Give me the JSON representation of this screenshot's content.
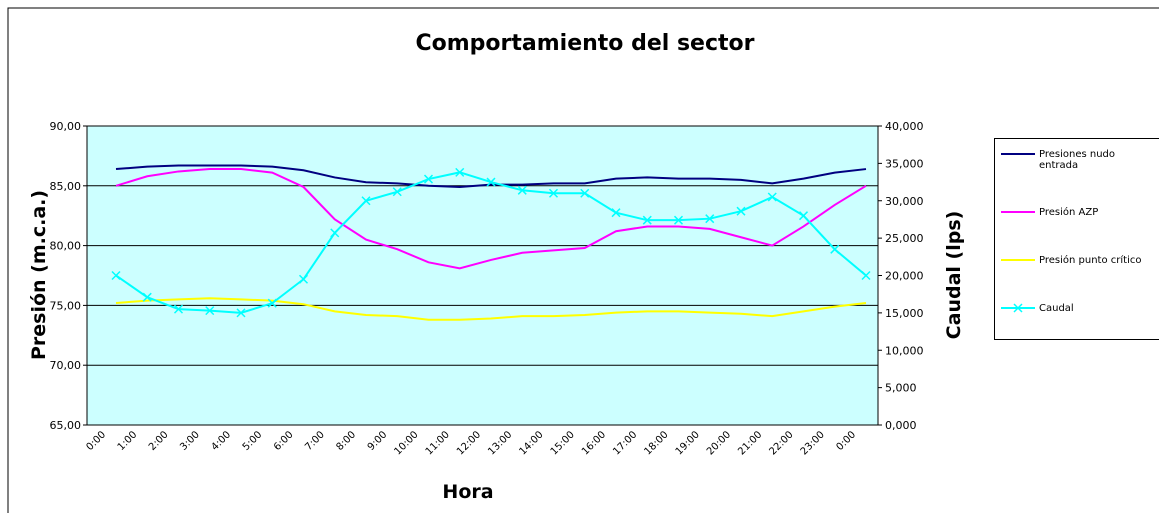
{
  "chart_data": {
    "type": "line",
    "title": "Comportamiento del sector",
    "xlabel": "Hora",
    "ylabel": "Presión (m.c.a.)",
    "y2label": "Caudal (lps)",
    "categories": [
      "0:00",
      "1:00",
      "2:00",
      "3:00",
      "4:00",
      "5:00",
      "6:00",
      "7:00",
      "8:00",
      "9:00",
      "10:00",
      "11:00",
      "12:00",
      "13:00",
      "14:00",
      "15:00",
      "16:00",
      "17:00",
      "18:00",
      "19:00",
      "20:00",
      "21:00",
      "22:00",
      "23:00",
      "0:00"
    ],
    "series": [
      {
        "name": "Presiones nudo entrada",
        "color": "#000080",
        "values": [
          86.4,
          86.6,
          86.7,
          86.7,
          86.7,
          86.6,
          86.3,
          85.7,
          85.3,
          85.2,
          85.0,
          84.9,
          85.1,
          85.1,
          85.2,
          85.2,
          85.6,
          85.7,
          85.6,
          85.6,
          85.5,
          85.2,
          85.6,
          86.1,
          86.4
        ]
      },
      {
        "name": "Presión AZP",
        "color": "#ff00ff",
        "values": [
          85.0,
          85.8,
          86.2,
          86.4,
          86.4,
          86.1,
          84.9,
          82.2,
          80.5,
          79.7,
          78.6,
          78.1,
          78.8,
          79.4,
          79.6,
          79.8,
          81.2,
          81.6,
          81.6,
          81.4,
          80.7,
          80.0,
          81.6,
          83.4,
          85.0
        ]
      },
      {
        "name": "Presión punto crítico",
        "color": "#ffff00",
        "values": [
          75.2,
          75.4,
          75.5,
          75.6,
          75.5,
          75.4,
          75.1,
          74.5,
          74.2,
          74.1,
          73.8,
          73.8,
          73.9,
          74.1,
          74.1,
          74.2,
          74.4,
          74.5,
          74.5,
          74.4,
          74.3,
          74.1,
          74.5,
          74.9,
          75.2
        ]
      },
      {
        "name": "Caudal",
        "color": "#00ffff",
        "axis": "y2",
        "marker": "x",
        "values": [
          20000,
          17100,
          15500,
          15300,
          15000,
          16300,
          19500,
          25700,
          30000,
          31200,
          32900,
          33800,
          32500,
          31400,
          31000,
          31000,
          28400,
          27400,
          27400,
          27600,
          28600,
          30500,
          28000,
          23500,
          20000
        ]
      }
    ],
    "ylim": [
      65,
      90
    ],
    "yticks": [
      {
        "value": 65,
        "label": "65,00"
      },
      {
        "value": 70,
        "label": "70,00"
      },
      {
        "value": 75,
        "label": "75,00"
      },
      {
        "value": 80,
        "label": "80,00"
      },
      {
        "value": 85,
        "label": "85,00"
      },
      {
        "value": 90,
        "label": "90,00"
      }
    ],
    "y2lim": [
      0,
      40000
    ],
    "y2ticks": [
      {
        "value": 0,
        "label": "0,000"
      },
      {
        "value": 5000,
        "label": "5,000"
      },
      {
        "value": 10000,
        "label": "10,000"
      },
      {
        "value": 15000,
        "label": "15,000"
      },
      {
        "value": 20000,
        "label": "20,000"
      },
      {
        "value": 25000,
        "label": "25,000"
      },
      {
        "value": 30000,
        "label": "30,000"
      },
      {
        "value": 35000,
        "label": "35,000"
      },
      {
        "value": 40000,
        "label": "40,000"
      }
    ],
    "grid": true,
    "background": "#ccffff",
    "legend": "right"
  }
}
